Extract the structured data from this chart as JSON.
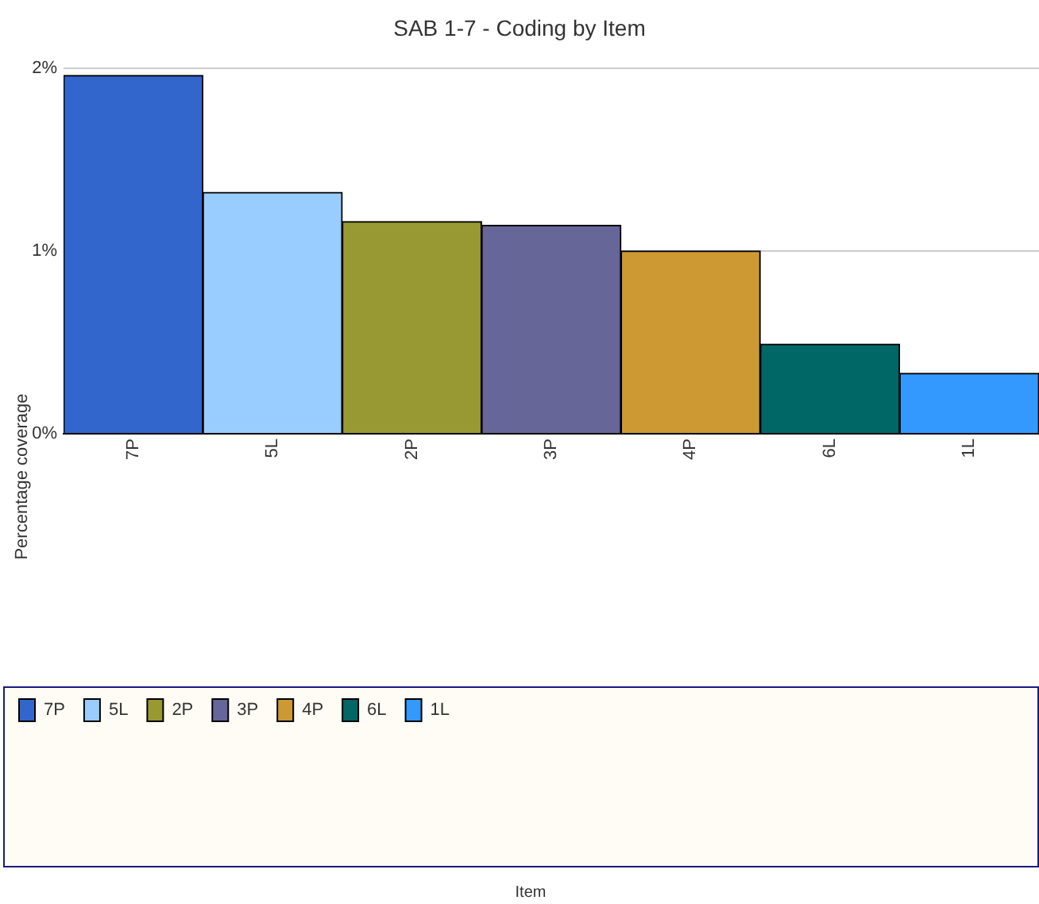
{
  "chart_data": {
    "type": "bar",
    "title": "SAB 1-7 - Coding by Item",
    "ylabel": "Percentage coverage",
    "categories": [
      "7P",
      "5L",
      "2P",
      "3P",
      "4P",
      "6L",
      "1L"
    ],
    "series": [
      {
        "name": "7P",
        "color": "#3366cc",
        "values": [
          1.96,
          null,
          null,
          null,
          null,
          null,
          null
        ]
      },
      {
        "name": "5L",
        "color": "#99ccff",
        "values": [
          null,
          1.32,
          null,
          null,
          null,
          null,
          null
        ]
      },
      {
        "name": "2P",
        "color": "#999933",
        "values": [
          null,
          null,
          1.16,
          null,
          null,
          null,
          null
        ]
      },
      {
        "name": "3P",
        "color": "#666699",
        "values": [
          null,
          null,
          null,
          1.14,
          null,
          null,
          null
        ]
      },
      {
        "name": "4P",
        "color": "#cc9933",
        "values": [
          null,
          null,
          null,
          null,
          1.0,
          null,
          null
        ]
      },
      {
        "name": "6L",
        "color": "#006666",
        "values": [
          null,
          null,
          null,
          null,
          null,
          0.49,
          null
        ]
      },
      {
        "name": "1L",
        "color": "#3399ff",
        "values": [
          null,
          null,
          null,
          null,
          null,
          null,
          0.33
        ]
      }
    ],
    "ylim": [
      0,
      2
    ],
    "yticks": [
      {
        "value": 0,
        "label": "0%"
      },
      {
        "value": 1,
        "label": "1%"
      },
      {
        "value": 2,
        "label": "2%"
      }
    ],
    "grid": "y",
    "legend": "bottom",
    "annotations": [
      "Item"
    ]
  }
}
